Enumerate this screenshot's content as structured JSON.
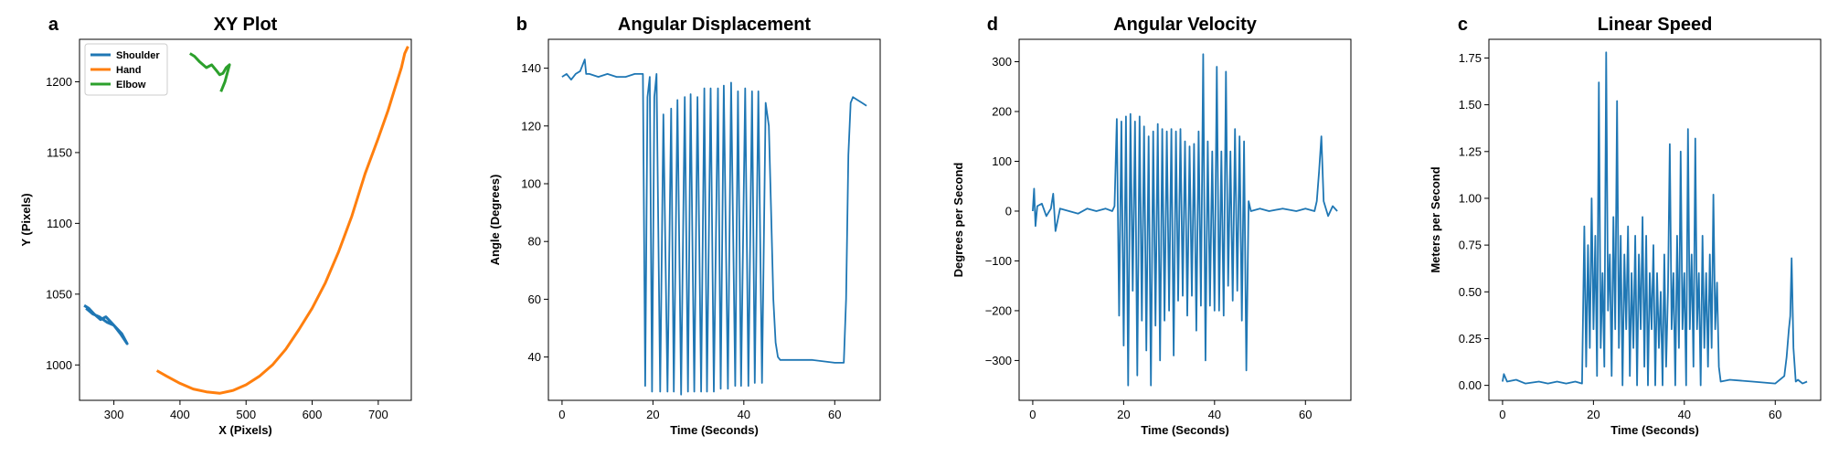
{
  "colors": {
    "blue": "#1f77b4",
    "orange": "#ff7f0e",
    "green": "#2ca02c",
    "axis": "#000000"
  },
  "chart_data": [
    {
      "panel_letter": "a",
      "type": "line",
      "title": "XY Plot",
      "xlabel": "X (Pixels)",
      "ylabel": "Y (Pixels)",
      "xlim": [
        248,
        750
      ],
      "ylim": [
        975,
        1230
      ],
      "xticks": [
        300,
        400,
        500,
        600,
        700
      ],
      "yticks": [
        1000,
        1050,
        1100,
        1150,
        1200
      ],
      "y_inverted": false,
      "grid": false,
      "legend_position": "upper-left",
      "series": [
        {
          "name": "Shoulder",
          "color": "#1f77b4",
          "x": [
            255,
            262,
            270,
            280,
            288,
            296,
            304,
            312,
            320,
            310,
            300,
            290,
            278,
            268,
            258
          ],
          "y": [
            1042,
            1040,
            1036,
            1032,
            1034,
            1030,
            1026,
            1022,
            1015,
            1022,
            1028,
            1030,
            1034,
            1036,
            1040
          ]
        },
        {
          "name": "Hand",
          "color": "#ff7f0e",
          "x": [
            365,
            380,
            400,
            420,
            440,
            460,
            480,
            500,
            520,
            540,
            560,
            580,
            600,
            620,
            640,
            660,
            680,
            700,
            715,
            725,
            735,
            740,
            745
          ],
          "y": [
            996,
            992,
            987,
            983,
            981,
            980,
            982,
            986,
            992,
            1000,
            1011,
            1025,
            1040,
            1058,
            1080,
            1105,
            1135,
            1160,
            1180,
            1195,
            1210,
            1220,
            1225
          ]
        },
        {
          "name": "Elbow",
          "color": "#2ca02c",
          "x": [
            415,
            422,
            430,
            440,
            448,
            455,
            460,
            465,
            470,
            475,
            468,
            462
          ],
          "y": [
            1220,
            1218,
            1214,
            1210,
            1212,
            1208,
            1205,
            1206,
            1210,
            1212,
            1200,
            1193
          ]
        }
      ]
    },
    {
      "panel_letter": "b",
      "type": "line",
      "title": "Angular Displacement",
      "xlabel": "Time (Seconds)",
      "ylabel": "Angle (Degrees)",
      "xlim": [
        -3,
        70
      ],
      "ylim": [
        25,
        150
      ],
      "xticks": [
        0,
        20,
        40,
        60
      ],
      "yticks": [
        40,
        60,
        80,
        100,
        120,
        140
      ],
      "grid": false,
      "series": [
        {
          "name": "",
          "color": "#1f77b4",
          "x": [
            0,
            1,
            2,
            3,
            4,
            5,
            5.3,
            6,
            8,
            10,
            12,
            14,
            16,
            17.5,
            17.8,
            18.3,
            18.8,
            19.3,
            19.8,
            20.3,
            20.8,
            21.6,
            22.3,
            23.2,
            24.0,
            24.6,
            25.4,
            26.2,
            27.0,
            27.7,
            28.3,
            29.1,
            29.8,
            30.6,
            31.3,
            31.9,
            32.7,
            33.4,
            34.3,
            34.9,
            35.6,
            36.5,
            37.2,
            38.1,
            38.7,
            39.4,
            40.3,
            41.0,
            41.8,
            42.4,
            43.2,
            44.0,
            44.8,
            45.5,
            46.0,
            46.5,
            47.0,
            47.5,
            48,
            50,
            55,
            60,
            62,
            62.5,
            63,
            63.5,
            64,
            65,
            66,
            67
          ],
          "y": [
            137,
            138,
            136,
            138,
            139,
            143,
            138,
            138,
            137,
            138,
            137,
            137,
            138,
            138,
            138,
            30,
            130,
            137,
            28,
            130,
            138,
            28,
            124,
            28,
            126,
            28,
            129,
            27,
            130,
            28,
            131,
            28,
            130,
            28,
            133,
            28,
            133,
            28,
            133,
            29,
            134,
            29,
            135,
            30,
            132,
            30,
            133,
            30,
            132,
            31,
            132,
            31,
            128,
            120,
            90,
            60,
            45,
            40,
            39,
            39,
            39,
            38,
            38,
            60,
            110,
            128,
            130,
            129,
            128,
            127
          ]
        }
      ]
    },
    {
      "panel_letter": "d",
      "type": "line",
      "title": "Angular Velocity",
      "xlabel": "Time (Seconds)",
      "ylabel": "Degrees per Second",
      "xlim": [
        -3,
        70
      ],
      "ylim": [
        -380,
        345
      ],
      "xticks": [
        0,
        20,
        40,
        60
      ],
      "yticks": [
        -300,
        -200,
        -100,
        0,
        100,
        200,
        300
      ],
      "grid": false,
      "series": [
        {
          "name": "",
          "color": "#1f77b4",
          "x": [
            0,
            0.3,
            0.6,
            1,
            2,
            3,
            4,
            4.5,
            5,
            6,
            8,
            10,
            12,
            14,
            16,
            17.5,
            18,
            18.5,
            19.0,
            19.5,
            20.0,
            20.5,
            21.0,
            21.5,
            22.0,
            22.5,
            23.0,
            23.5,
            24.0,
            24.5,
            25.0,
            25.5,
            26.0,
            26.5,
            27.0,
            27.5,
            28.0,
            28.5,
            29.0,
            29.5,
            30.0,
            30.5,
            31.0,
            31.5,
            32.0,
            32.5,
            33.0,
            33.5,
            34.0,
            34.5,
            35.0,
            35.5,
            36.0,
            36.5,
            37.0,
            37.5,
            38.0,
            38.5,
            39.0,
            39.5,
            40.0,
            40.5,
            41.0,
            41.5,
            42.0,
            42.5,
            43.0,
            43.5,
            44.0,
            44.5,
            45.0,
            45.5,
            46.0,
            46.5,
            47.0,
            47.5,
            48,
            50,
            52,
            55,
            58,
            60,
            62,
            62.5,
            63,
            63.5,
            64,
            65,
            66,
            67
          ],
          "y": [
            0,
            45,
            -30,
            10,
            15,
            -10,
            5,
            35,
            -40,
            5,
            0,
            -5,
            5,
            0,
            5,
            0,
            10,
            185,
            -210,
            180,
            -270,
            190,
            -350,
            195,
            -160,
            180,
            -330,
            190,
            -220,
            170,
            -280,
            150,
            -350,
            160,
            -230,
            175,
            -300,
            165,
            -220,
            160,
            -200,
            165,
            -290,
            160,
            -180,
            165,
            -170,
            140,
            -210,
            130,
            -170,
            135,
            -240,
            160,
            -190,
            315,
            -300,
            140,
            -190,
            120,
            -200,
            290,
            -200,
            120,
            -210,
            280,
            -150,
            120,
            -180,
            165,
            -160,
            150,
            -220,
            140,
            -320,
            20,
            0,
            5,
            0,
            5,
            0,
            5,
            0,
            20,
            80,
            150,
            20,
            -10,
            10,
            0
          ]
        }
      ]
    },
    {
      "panel_letter": "c",
      "type": "line",
      "title": "Linear Speed",
      "xlabel": "Time (Seconds)",
      "ylabel": "Meters per Second",
      "xlim": [
        -3,
        70
      ],
      "ylim": [
        -0.08,
        1.85
      ],
      "xticks": [
        0,
        20,
        40,
        60
      ],
      "yticks": [
        0.0,
        0.25,
        0.5,
        0.75,
        1.0,
        1.25,
        1.5,
        1.75
      ],
      "grid": false,
      "series": [
        {
          "name": "",
          "color": "#1f77b4",
          "x": [
            0,
            0.3,
            1,
            3,
            5,
            8,
            10,
            12,
            14,
            16,
            17.5,
            18.0,
            18.4,
            18.8,
            19.2,
            19.6,
            20.0,
            20.4,
            20.8,
            21.2,
            21.6,
            22.0,
            22.4,
            22.8,
            23.2,
            23.6,
            24.0,
            24.4,
            24.8,
            25.2,
            25.6,
            26.0,
            26.4,
            26.8,
            27.2,
            27.6,
            28.0,
            28.4,
            28.8,
            29.2,
            29.6,
            30.0,
            30.4,
            30.8,
            31.2,
            31.6,
            32.0,
            32.4,
            32.8,
            33.2,
            33.6,
            34.0,
            34.4,
            34.8,
            35.2,
            35.6,
            36.0,
            36.4,
            36.8,
            37.2,
            37.6,
            38.0,
            38.4,
            38.8,
            39.2,
            39.6,
            40.0,
            40.4,
            40.8,
            41.2,
            41.6,
            42.0,
            42.4,
            42.8,
            43.2,
            43.6,
            44.0,
            44.4,
            44.8,
            45.2,
            45.6,
            46.0,
            46.4,
            46.8,
            47.2,
            47.6,
            48,
            50,
            55,
            60,
            62,
            62.5,
            63,
            63.3,
            63.6,
            64,
            64.5,
            65,
            66,
            67
          ],
          "y": [
            0.02,
            0.06,
            0.02,
            0.03,
            0.01,
            0.02,
            0.01,
            0.02,
            0.01,
            0.02,
            0.01,
            0.85,
            0.1,
            0.75,
            0.2,
            1.0,
            0.3,
            0.8,
            0.05,
            1.62,
            0.2,
            0.6,
            0.1,
            1.78,
            0.4,
            0.7,
            0.05,
            0.9,
            0.3,
            1.52,
            0.2,
            0.8,
            0.0,
            0.7,
            0.3,
            0.85,
            0.05,
            0.6,
            0.2,
            0.8,
            0.0,
            0.7,
            0.3,
            0.9,
            0.1,
            0.8,
            0.0,
            0.6,
            0.3,
            0.75,
            0.0,
            0.6,
            0.2,
            0.5,
            0.0,
            0.7,
            0.1,
            0.5,
            1.29,
            0.3,
            0.6,
            0.0,
            0.8,
            0.2,
            1.25,
            0.3,
            0.6,
            0.0,
            1.37,
            0.3,
            0.7,
            0.1,
            1.32,
            0.3,
            0.6,
            0.0,
            0.8,
            0.2,
            0.6,
            0.1,
            0.7,
            0.2,
            1.02,
            0.3,
            0.55,
            0.1,
            0.02,
            0.03,
            0.02,
            0.01,
            0.05,
            0.15,
            0.3,
            0.37,
            0.68,
            0.2,
            0.02,
            0.03,
            0.01,
            0.02
          ]
        }
      ]
    }
  ]
}
